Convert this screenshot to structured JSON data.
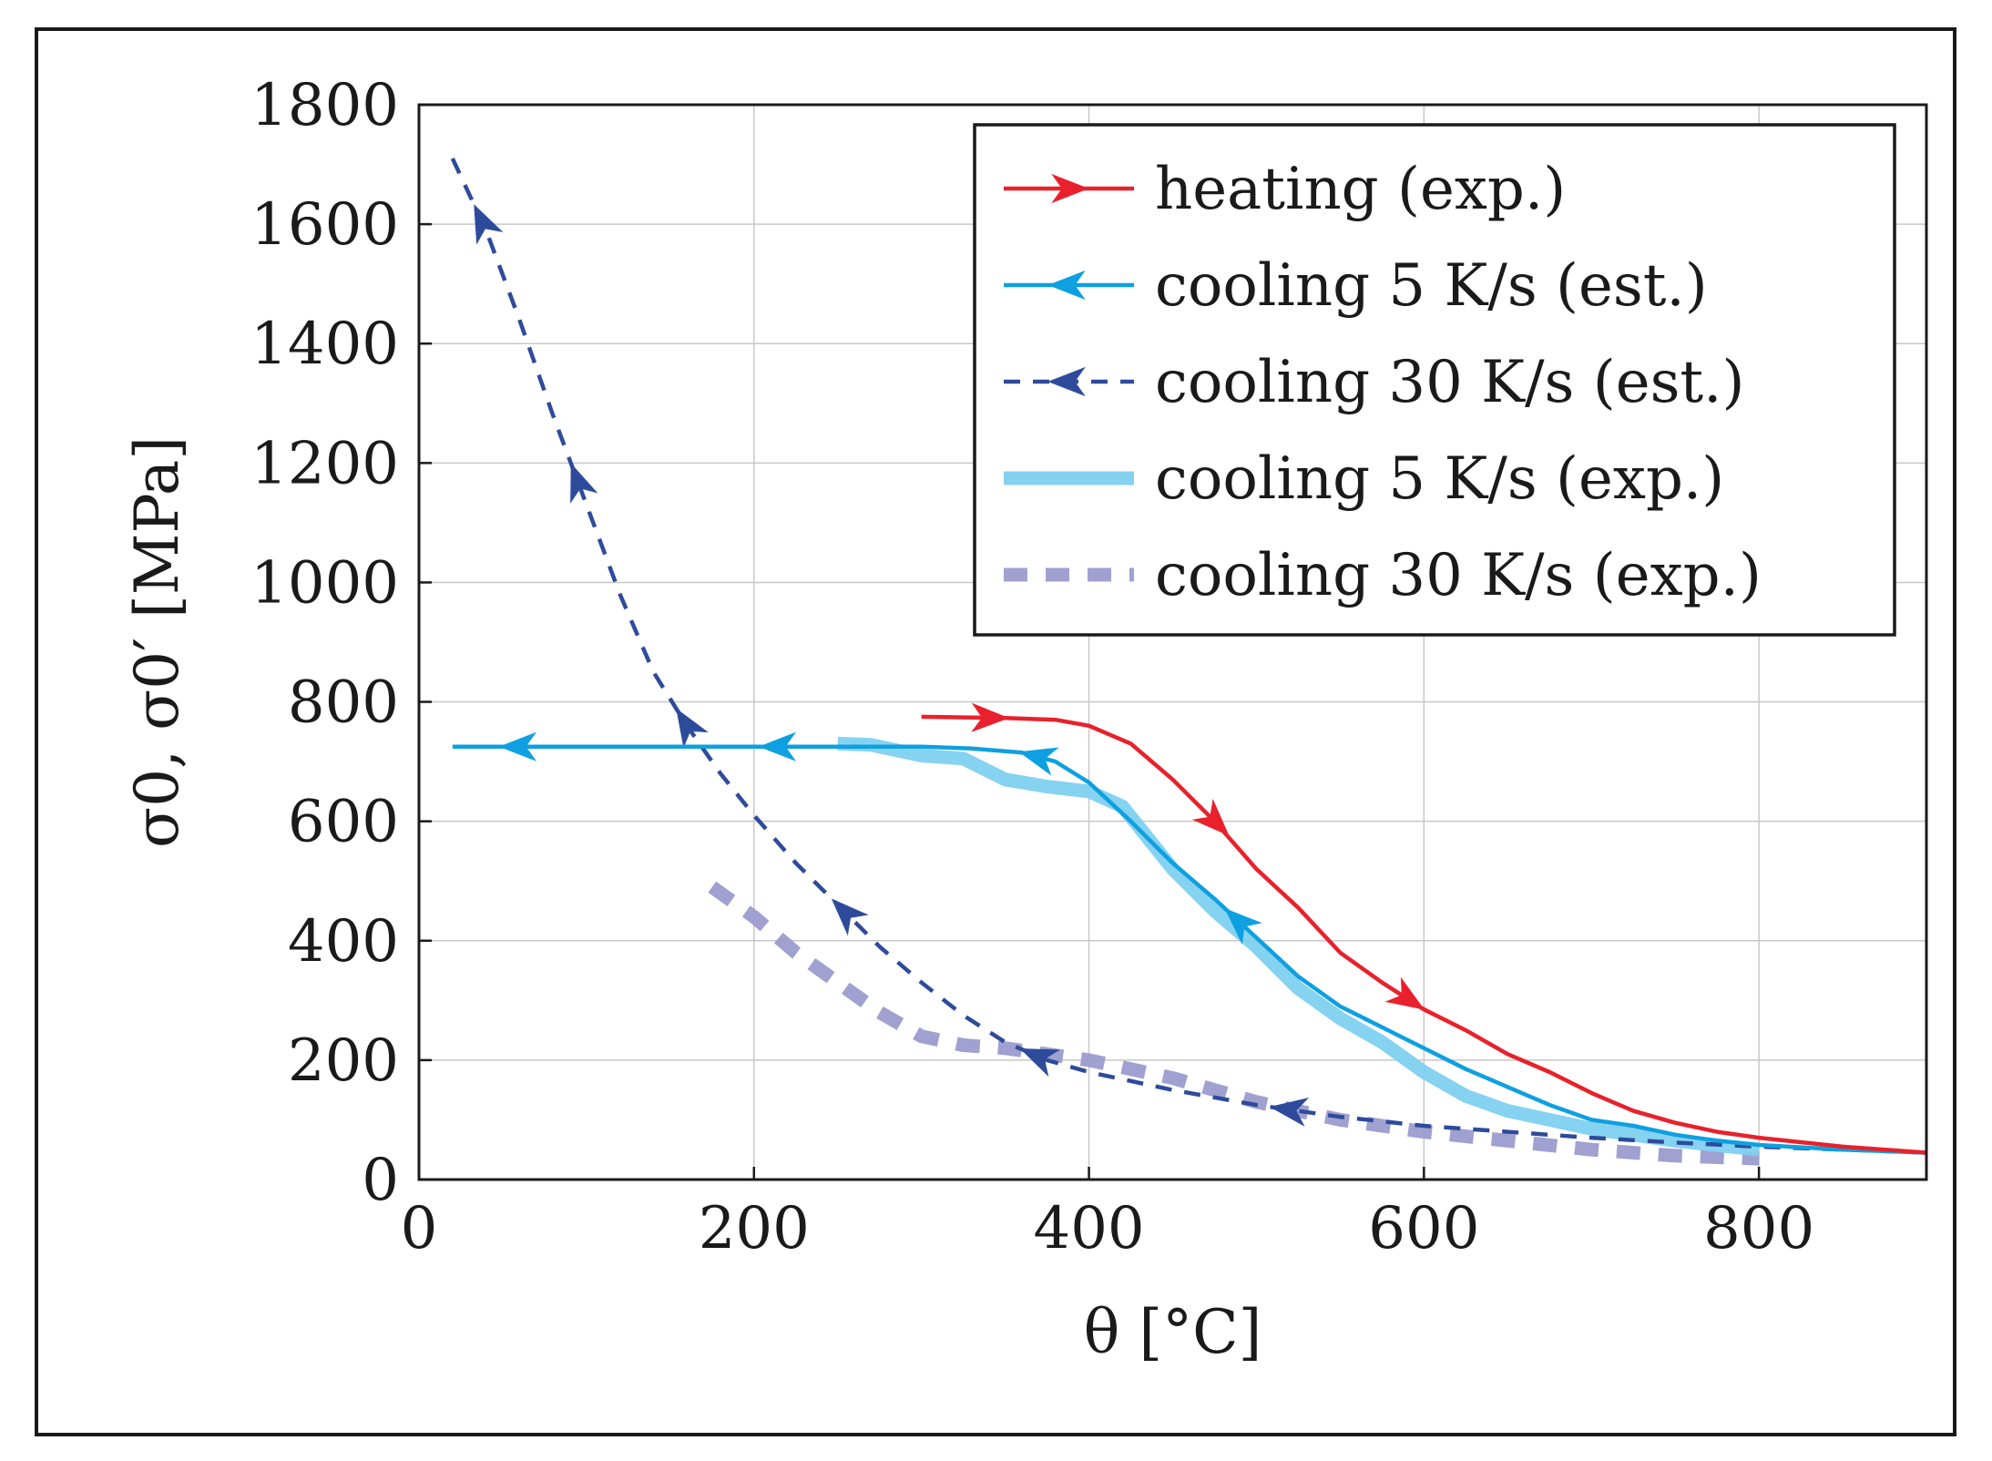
{
  "chart_data": {
    "type": "line",
    "title": "",
    "xlabel": "θ [°C]",
    "ylabel": "σ0, σ0′ [MPa]",
    "xlim": [
      0,
      900
    ],
    "ylim": [
      0,
      1800
    ],
    "xticks": [
      0,
      200,
      400,
      600,
      800
    ],
    "yticks": [
      0,
      200,
      400,
      600,
      800,
      1000,
      1200,
      1400,
      1600,
      1800
    ],
    "grid": true,
    "legend_position": "top-right",
    "series": [
      {
        "name": "heating (exp.)",
        "color": "#e8212c",
        "style": "solid-marked",
        "direction": "right",
        "x": [
          300,
          350,
          380,
          400,
          425,
          450,
          475,
          500,
          525,
          550,
          575,
          600,
          625,
          650,
          675,
          700,
          725,
          750,
          775,
          800,
          850,
          900
        ],
        "y": [
          775,
          773,
          770,
          760,
          730,
          670,
          600,
          520,
          455,
          380,
          330,
          285,
          250,
          210,
          180,
          145,
          115,
          95,
          80,
          70,
          55,
          45
        ],
        "markers_x": [
          340,
          475,
          590
        ]
      },
      {
        "name": "cooling 5 K/s (est.)",
        "color": "#0ea0e0",
        "style": "solid-marked",
        "direction": "left",
        "x": [
          20,
          100,
          200,
          300,
          330,
          360,
          380,
          400,
          425,
          450,
          475,
          500,
          525,
          550,
          575,
          600,
          625,
          650,
          675,
          700,
          725,
          750,
          775,
          800,
          850,
          900
        ],
        "y": [
          725,
          725,
          725,
          725,
          722,
          715,
          700,
          665,
          600,
          530,
          470,
          405,
          340,
          290,
          255,
          220,
          185,
          155,
          125,
          100,
          90,
          75,
          65,
          58,
          50,
          45
        ],
        "markers_x": [
          60,
          215,
          370,
          490
        ]
      },
      {
        "name": "cooling 30 K/s (est.)",
        "color": "#2e4b9b",
        "style": "dashed-marked",
        "direction": "left",
        "x": [
          20,
          40,
          60,
          80,
          100,
          120,
          140,
          160,
          180,
          200,
          225,
          250,
          275,
          300,
          325,
          350,
          375,
          400,
          450,
          500,
          550,
          600,
          650,
          700,
          750,
          800,
          850,
          900
        ],
        "y": [
          1710,
          1590,
          1440,
          1280,
          1130,
          980,
          850,
          760,
          680,
          610,
          530,
          460,
          390,
          330,
          275,
          230,
          200,
          180,
          150,
          125,
          105,
          90,
          80,
          70,
          62,
          55,
          50,
          45
        ],
        "markers_x": [
          38,
          95,
          160,
          255,
          370,
          520
        ]
      },
      {
        "name": "cooling 5 K/s (exp.)",
        "color": "#7fd0f0",
        "style": "thick",
        "x": [
          250,
          270,
          300,
          325,
          350,
          375,
          400,
          420,
          450,
          475,
          500,
          525,
          550,
          575,
          600,
          625,
          650,
          675,
          700,
          750,
          800
        ],
        "y": [
          730,
          728,
          710,
          705,
          670,
          658,
          650,
          625,
          520,
          450,
          390,
          320,
          270,
          230,
          180,
          140,
          115,
          100,
          85,
          65,
          50
        ]
      },
      {
        "name": "cooling 30 K/s (exp.)",
        "color": "#9b9ccf",
        "style": "thick-dashed",
        "x": [
          175,
          200,
          225,
          250,
          275,
          300,
          325,
          350,
          375,
          400,
          450,
          500,
          550,
          600,
          650,
          700,
          750,
          800
        ],
        "y": [
          490,
          440,
          380,
          330,
          280,
          240,
          225,
          220,
          210,
          200,
          170,
          130,
          100,
          80,
          65,
          50,
          40,
          35
        ]
      }
    ]
  }
}
